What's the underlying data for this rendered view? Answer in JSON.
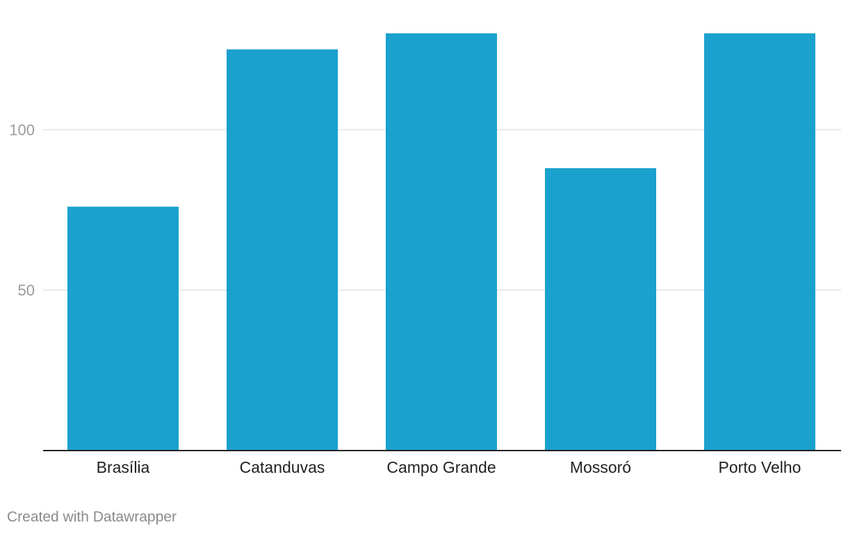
{
  "chart_data": {
    "type": "bar",
    "categories": [
      "Brasília",
      "Catanduvas",
      "Campo Grande",
      "Mossoró",
      "Porto Velho"
    ],
    "values": [
      76,
      125,
      130,
      88,
      130
    ],
    "yticks": [
      50,
      100
    ],
    "ylim": [
      0,
      130
    ],
    "grid": true,
    "colors": {
      "bar": "#1aa1cd"
    }
  },
  "footer": {
    "credit": "Created with Datawrapper"
  }
}
